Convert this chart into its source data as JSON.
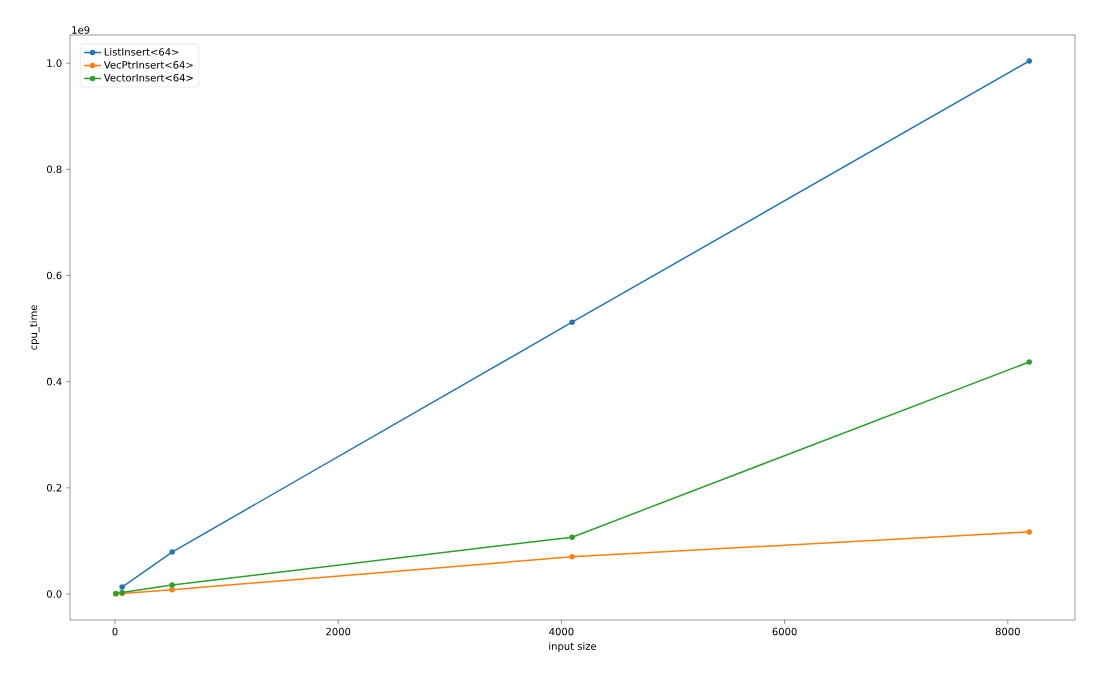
{
  "chart_data": {
    "type": "line",
    "xlabel": "input size",
    "ylabel": "cpu_time",
    "x": [
      8,
      64,
      512,
      4096,
      8192
    ],
    "series": [
      {
        "name": "ListInsert<64>",
        "color": "#1f77b4",
        "values": [
          null,
          0.013,
          0.079,
          0.512,
          1.004
        ]
      },
      {
        "name": "VecPtrInsert<64>",
        "color": "#ff7f0e",
        "values": [
          0.0,
          0.001,
          0.008,
          0.07,
          0.117
        ]
      },
      {
        "name": "VectorInsert<64>",
        "color": "#2ca02c",
        "values": [
          0.001,
          0.003,
          0.017,
          0.107,
          0.437
        ]
      }
    ],
    "xlim": [
      -403,
      8602
    ],
    "ylim": [
      -0.049,
      1.053
    ],
    "xticks": [
      0,
      2000,
      4000,
      6000,
      8000
    ],
    "yticks": [
      {
        "value": 0,
        "label": "0.0"
      },
      0.2,
      0.4,
      0.6,
      0.8,
      {
        "value": 1,
        "label": "1.0"
      }
    ],
    "annotations": [
      "1e9"
    ],
    "marker": "circle",
    "line_style": "solid",
    "legend": "top left",
    "grid": false
  }
}
